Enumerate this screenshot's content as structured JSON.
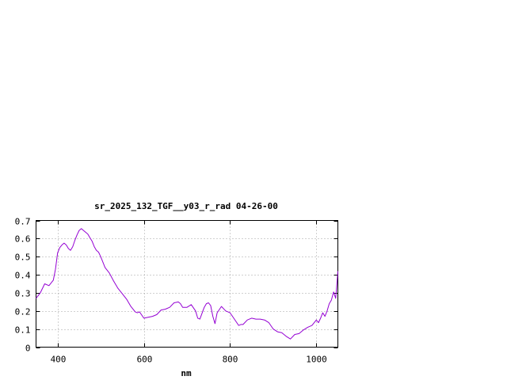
{
  "chart_data": {
    "type": "line",
    "title": "sr_2025_132_TGF__y03_r_rad 04-26-00",
    "xlabel": "nm",
    "ylabel": "",
    "xlim": [
      350,
      1050
    ],
    "ylim": [
      0,
      0.7
    ],
    "xticks": [
      400,
      600,
      800,
      1000
    ],
    "yticks": [
      0,
      0.1,
      0.2,
      0.3,
      0.4,
      0.5,
      0.6,
      0.7
    ],
    "xtick_labels": [
      "400",
      "600",
      "800",
      "1000"
    ],
    "ytick_labels": [
      "0",
      "0.1",
      "0.2",
      "0.3",
      "0.4",
      "0.5",
      "0.6",
      "0.7"
    ],
    "grid": true,
    "line_color": "#9400d3",
    "series": [
      {
        "x": [
          350,
          360,
          370,
          380,
          390,
          395,
          400,
          405,
          410,
          415,
          420,
          425,
          430,
          435,
          440,
          445,
          450,
          455,
          460,
          465,
          470,
          475,
          480,
          485,
          490,
          495,
          500,
          510,
          520,
          530,
          540,
          545,
          550,
          560,
          570,
          580,
          585,
          590,
          600,
          610,
          620,
          630,
          640,
          650,
          660,
          670,
          680,
          685,
          690,
          700,
          710,
          720,
          725,
          730,
          740,
          745,
          750,
          755,
          760,
          765,
          770,
          780,
          790,
          800,
          810,
          820,
          825,
          830,
          840,
          850,
          860,
          870,
          880,
          890,
          900,
          910,
          920,
          930,
          940,
          950,
          960,
          970,
          980,
          990,
          1000,
          1005,
          1010,
          1015,
          1020,
          1025,
          1030,
          1035,
          1040,
          1045,
          1050
        ],
        "y": [
          0.27,
          0.3,
          0.35,
          0.34,
          0.37,
          0.43,
          0.52,
          0.55,
          0.565,
          0.575,
          0.565,
          0.545,
          0.535,
          0.555,
          0.59,
          0.62,
          0.645,
          0.655,
          0.645,
          0.635,
          0.625,
          0.605,
          0.585,
          0.555,
          0.535,
          0.525,
          0.5,
          0.44,
          0.41,
          0.365,
          0.325,
          0.31,
          0.295,
          0.265,
          0.225,
          0.195,
          0.19,
          0.195,
          0.16,
          0.165,
          0.17,
          0.18,
          0.205,
          0.21,
          0.22,
          0.245,
          0.25,
          0.24,
          0.22,
          0.22,
          0.235,
          0.2,
          0.16,
          0.155,
          0.22,
          0.24,
          0.245,
          0.23,
          0.17,
          0.13,
          0.19,
          0.225,
          0.2,
          0.19,
          0.155,
          0.12,
          0.125,
          0.125,
          0.15,
          0.16,
          0.155,
          0.155,
          0.15,
          0.135,
          0.1,
          0.085,
          0.08,
          0.06,
          0.045,
          0.07,
          0.075,
          0.095,
          0.11,
          0.12,
          0.15,
          0.135,
          0.16,
          0.19,
          0.17,
          0.2,
          0.24,
          0.26,
          0.305,
          0.27,
          0.42
        ]
      }
    ]
  }
}
